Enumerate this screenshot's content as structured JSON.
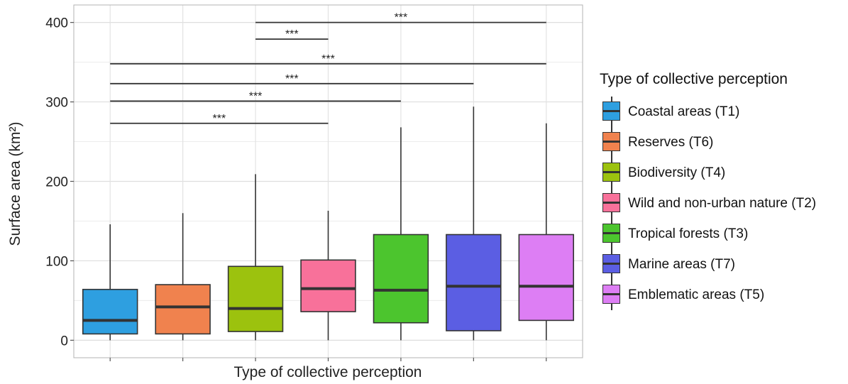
{
  "chart_data": {
    "type": "box",
    "xlabel": "Type of collective perception",
    "ylabel": "Surface area (km²)",
    "ylim": [
      -22,
      422
    ],
    "yticks": [
      0,
      100,
      200,
      300,
      400
    ],
    "ytick_labels": [
      "0",
      "100",
      "200",
      "300",
      "400"
    ],
    "grid": true,
    "legend_title": "Type of collective perception",
    "legend_placement": "right",
    "series": [
      {
        "name": "Coastal areas (T1)",
        "color": "#2E9FE0",
        "whisker_low": 0,
        "q1": 8,
        "median": 25,
        "q3": 64,
        "whisker_high": 146
      },
      {
        "name": "Reserves (T6)",
        "color": "#F0824E",
        "whisker_low": 0,
        "q1": 8,
        "median": 42,
        "q3": 70,
        "whisker_high": 160
      },
      {
        "name": "Biodiversity (T4)",
        "color": "#9CC20E",
        "whisker_low": 0,
        "q1": 11,
        "median": 40,
        "q3": 93,
        "whisker_high": 209
      },
      {
        "name": "Wild and non-urban nature (T2)",
        "color": "#F8719A",
        "whisker_low": 0,
        "q1": 36,
        "median": 65,
        "q3": 101,
        "whisker_high": 163
      },
      {
        "name": "Tropical forests (T3)",
        "color": "#4CC52E",
        "whisker_low": 0,
        "q1": 22,
        "median": 63,
        "q3": 133,
        "whisker_high": 268
      },
      {
        "name": "Marine areas (T7)",
        "color": "#5B5EE3",
        "whisker_low": 0,
        "q1": 12,
        "median": 68,
        "q3": 133,
        "whisker_high": 294
      },
      {
        "name": "Emblematic areas (T5)",
        "color": "#DD7EF4",
        "whisker_low": 0,
        "q1": 25,
        "median": 68,
        "q3": 133,
        "whisker_high": 273
      }
    ],
    "significance": [
      {
        "from": 1,
        "to": 4,
        "y": 273,
        "label": "***"
      },
      {
        "from": 1,
        "to": 5,
        "y": 301,
        "label": "***"
      },
      {
        "from": 1,
        "to": 6,
        "y": 323,
        "label": "***"
      },
      {
        "from": 1,
        "to": 7,
        "y": 348,
        "label": "***"
      },
      {
        "from": 3,
        "to": 4,
        "y": 379,
        "label": "***"
      },
      {
        "from": 3,
        "to": 7,
        "y": 400,
        "label": "***"
      }
    ]
  }
}
